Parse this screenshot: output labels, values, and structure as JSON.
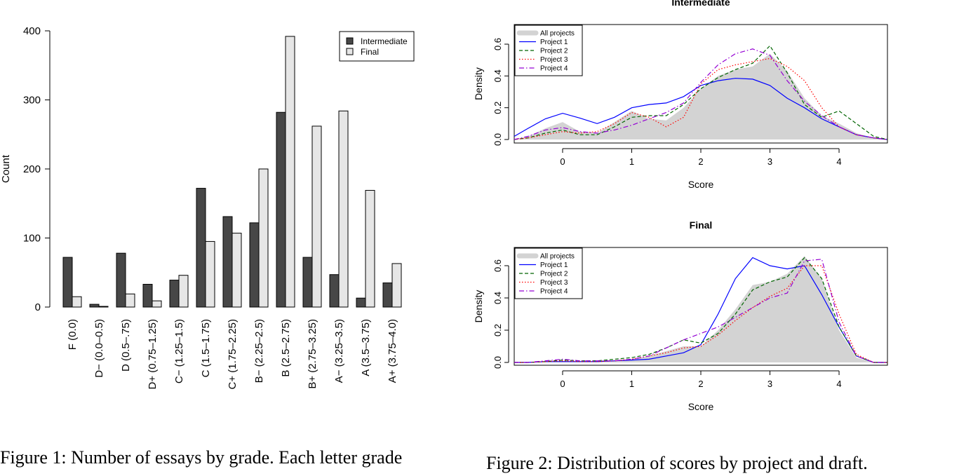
{
  "chart_data": [
    {
      "type": "bar",
      "ylabel": "Count",
      "xlabel": "",
      "ylim": [
        0,
        400
      ],
      "yticks": [
        0,
        100,
        200,
        300,
        400
      ],
      "categories": [
        "F (0.0)",
        "D− (0.0–0.5)",
        "D (0.5–.75)",
        "D+ (0.75–1.25)",
        "C− (1.25–1.5)",
        "C (1.5–1.75)",
        "C+ (1.75–2.25)",
        "B− (2.25–2.5)",
        "B (2.5–2.75)",
        "B+ (2.75–3.25)",
        "A− (3.25–3.5)",
        "A (3.5–3.75)",
        "A+ (3.75–4.0)"
      ],
      "series": [
        {
          "name": "Intermediate",
          "color": "#474747",
          "values": [
            72,
            4,
            78,
            33,
            39,
            172,
            131,
            122,
            282,
            72,
            47,
            13,
            35
          ]
        },
        {
          "name": "Final",
          "color": "#e6e6e6",
          "values": [
            15,
            1,
            19,
            9,
            46,
            95,
            107,
            200,
            392,
            262,
            284,
            169,
            63
          ]
        }
      ],
      "legend_position": "top-right"
    },
    {
      "type": "line",
      "title": "Intermediate",
      "xlabel": "Score",
      "ylabel": "Density",
      "xlim": [
        -0.7,
        4.7
      ],
      "ylim": [
        0,
        0.7
      ],
      "xticks": [
        0,
        1,
        2,
        3,
        4
      ],
      "yticks": [
        0.0,
        0.2,
        0.4,
        0.6
      ],
      "x": [
        -0.7,
        -0.5,
        -0.25,
        0,
        0.25,
        0.5,
        0.75,
        1,
        1.25,
        1.5,
        1.75,
        2,
        2.25,
        2.5,
        2.75,
        3,
        3.25,
        3.5,
        3.75,
        4,
        4.25,
        4.5,
        4.7
      ],
      "series": [
        {
          "name": "All projects",
          "color": "#d3d3d3",
          "style": "area",
          "values": [
            0,
            0.02,
            0.07,
            0.11,
            0.05,
            0.04,
            0.11,
            0.18,
            0.13,
            0.12,
            0.2,
            0.32,
            0.4,
            0.44,
            0.46,
            0.54,
            0.43,
            0.26,
            0.15,
            0.1,
            0.04,
            0.01,
            0
          ]
        },
        {
          "name": "Project 1",
          "color": "#0000ff",
          "style": "solid",
          "values": [
            0.02,
            0.07,
            0.13,
            0.165,
            0.135,
            0.1,
            0.14,
            0.2,
            0.22,
            0.23,
            0.27,
            0.34,
            0.37,
            0.385,
            0.38,
            0.34,
            0.26,
            0.2,
            0.13,
            0.08,
            0.03,
            0.01,
            0
          ]
        },
        {
          "name": "Project 2",
          "color": "#006400",
          "style": "dashed",
          "values": [
            0,
            0.01,
            0.04,
            0.06,
            0.03,
            0.03,
            0.08,
            0.14,
            0.15,
            0.15,
            0.22,
            0.32,
            0.39,
            0.44,
            0.48,
            0.59,
            0.42,
            0.22,
            0.14,
            0.18,
            0.1,
            0.02,
            0
          ]
        },
        {
          "name": "Project 3",
          "color": "#ff0000",
          "style": "dotted",
          "values": [
            0,
            0.01,
            0.03,
            0.05,
            0.04,
            0.05,
            0.1,
            0.17,
            0.14,
            0.08,
            0.14,
            0.35,
            0.44,
            0.47,
            0.49,
            0.51,
            0.46,
            0.37,
            0.2,
            0.08,
            0.03,
            0.01,
            0
          ]
        },
        {
          "name": "Project 4",
          "color": "#9400d3",
          "style": "dotdash",
          "values": [
            0,
            0.02,
            0.06,
            0.075,
            0.05,
            0.04,
            0.06,
            0.09,
            0.13,
            0.17,
            0.23,
            0.36,
            0.47,
            0.54,
            0.57,
            0.53,
            0.37,
            0.24,
            0.15,
            0.08,
            0.03,
            0.01,
            0
          ]
        }
      ],
      "legend_position": "top-left"
    },
    {
      "type": "line",
      "title": "Final",
      "xlabel": "Score",
      "ylabel": "Density",
      "xlim": [
        -0.7,
        4.7
      ],
      "ylim": [
        0,
        0.7
      ],
      "xticks": [
        0,
        1,
        2,
        3,
        4
      ],
      "yticks": [
        0.0,
        0.2,
        0.4,
        0.6
      ],
      "x": [
        -0.7,
        -0.5,
        -0.25,
        0,
        0.25,
        0.5,
        0.75,
        1,
        1.25,
        1.5,
        1.75,
        2,
        2.25,
        2.5,
        2.75,
        3,
        3.25,
        3.5,
        3.75,
        4,
        4.25,
        4.5,
        4.7
      ],
      "series": [
        {
          "name": "All projects",
          "color": "#d3d3d3",
          "style": "area",
          "values": [
            0,
            0,
            0.005,
            0.01,
            0.005,
            0.005,
            0.01,
            0.02,
            0.04,
            0.07,
            0.1,
            0.1,
            0.2,
            0.33,
            0.48,
            0.5,
            0.55,
            0.66,
            0.52,
            0.2,
            0.03,
            0,
            0
          ]
        },
        {
          "name": "Project 1",
          "color": "#0000ff",
          "style": "solid",
          "values": [
            0,
            0,
            0.005,
            0.005,
            0.005,
            0.005,
            0.01,
            0.015,
            0.02,
            0.04,
            0.06,
            0.11,
            0.3,
            0.52,
            0.65,
            0.6,
            0.58,
            0.6,
            0.42,
            0.22,
            0.04,
            0,
            0
          ]
        },
        {
          "name": "Project 2",
          "color": "#006400",
          "style": "dashed",
          "values": [
            0,
            0,
            0.005,
            0.015,
            0.01,
            0.01,
            0.02,
            0.03,
            0.05,
            0.09,
            0.14,
            0.12,
            0.18,
            0.3,
            0.45,
            0.5,
            0.53,
            0.65,
            0.52,
            0.22,
            0.04,
            0,
            0
          ]
        },
        {
          "name": "Project 3",
          "color": "#ff0000",
          "style": "dotted",
          "values": [
            0,
            0,
            0.005,
            0.01,
            0.005,
            0.005,
            0.01,
            0.02,
            0.04,
            0.06,
            0.09,
            0.1,
            0.17,
            0.26,
            0.34,
            0.41,
            0.46,
            0.6,
            0.6,
            0.3,
            0.05,
            0,
            0
          ]
        },
        {
          "name": "Project 4",
          "color": "#9400d3",
          "style": "dotdash",
          "values": [
            0,
            0,
            0.01,
            0.02,
            0.01,
            0.01,
            0.01,
            0.02,
            0.04,
            0.09,
            0.14,
            0.18,
            0.22,
            0.28,
            0.34,
            0.4,
            0.43,
            0.63,
            0.64,
            0.25,
            0.04,
            0,
            0
          ]
        }
      ],
      "legend_position": "top-left"
    }
  ],
  "captions": {
    "figure1": "Figure 1:  Number of essays by grade.  Each letter grade",
    "figure2": "Figure 2: Distribution of scores by project and draft."
  }
}
